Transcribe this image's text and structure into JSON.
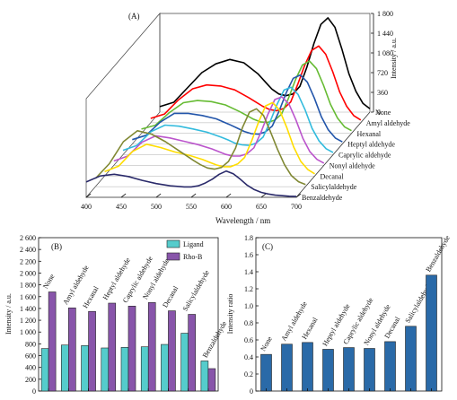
{
  "chart_data": [
    {
      "panel": "(A)",
      "type": "line",
      "view": "3d-waterfall",
      "xlabel": "Wavelength / nm",
      "zlabel": "Intensity / a.u.",
      "xlim": [
        400,
        700
      ],
      "x_ticks": [
        "400",
        "450",
        "500",
        "550",
        "600",
        "650",
        "700"
      ],
      "zlim": [
        0,
        1800
      ],
      "z_ticks": [
        "0",
        "360",
        "720",
        "1 080",
        "1 440",
        "1 800"
      ],
      "series": [
        {
          "name": "None",
          "color": "#000000",
          "x": [
            400,
            420,
            440,
            460,
            480,
            500,
            520,
            540,
            550,
            560,
            570,
            580,
            590,
            600,
            610,
            620,
            630,
            640,
            650,
            660,
            670,
            680,
            690,
            700
          ],
          "values": [
            100,
            180,
            450,
            720,
            880,
            960,
            900,
            700,
            560,
            420,
            330,
            300,
            330,
            470,
            820,
            1250,
            1600,
            1720,
            1550,
            1150,
            700,
            380,
            160,
            60
          ]
        },
        {
          "name": "Amyl aldehyde",
          "color": "#ff0000",
          "x": [
            400,
            420,
            440,
            460,
            480,
            500,
            520,
            540,
            550,
            560,
            570,
            580,
            590,
            600,
            610,
            620,
            630,
            640,
            650,
            660,
            670,
            680,
            690,
            700
          ],
          "values": [
            80,
            160,
            420,
            620,
            690,
            670,
            600,
            460,
            380,
            300,
            240,
            220,
            260,
            380,
            700,
            1050,
            1320,
            1400,
            1250,
            930,
            560,
            300,
            130,
            50
          ]
        },
        {
          "name": "Hexanal",
          "color": "#66bb33",
          "x": [
            400,
            420,
            440,
            460,
            480,
            500,
            520,
            540,
            550,
            560,
            570,
            580,
            590,
            600,
            610,
            620,
            630,
            640,
            650,
            660,
            670,
            680,
            690,
            700
          ],
          "values": [
            80,
            150,
            380,
            560,
            600,
            580,
            520,
            400,
            330,
            260,
            210,
            200,
            240,
            350,
            640,
            980,
            1250,
            1320,
            1180,
            880,
            530,
            280,
            120,
            50
          ]
        },
        {
          "name": "Heptyl aldehyde",
          "color": "#2255aa",
          "x": [
            400,
            420,
            440,
            460,
            480,
            500,
            520,
            540,
            550,
            560,
            570,
            580,
            590,
            600,
            610,
            620,
            630,
            640,
            650,
            660,
            670,
            680,
            690,
            700
          ],
          "values": [
            80,
            160,
            400,
            560,
            560,
            520,
            460,
            350,
            290,
            230,
            190,
            180,
            220,
            330,
            610,
            940,
            1200,
            1260,
            1130,
            840,
            500,
            260,
            110,
            40
          ]
        },
        {
          "name": "Caprylic aldehyde",
          "color": "#33bbdd",
          "x": [
            400,
            420,
            440,
            460,
            480,
            500,
            520,
            540,
            550,
            560,
            570,
            580,
            590,
            600,
            610,
            620,
            630,
            640,
            650,
            660,
            670,
            680,
            690,
            700
          ],
          "values": [
            80,
            170,
            420,
            540,
            520,
            470,
            410,
            320,
            270,
            210,
            180,
            170,
            210,
            320,
            600,
            920,
            1180,
            1230,
            1100,
            820,
            480,
            250,
            110,
            40
          ]
        },
        {
          "name": "Nonyl aldehyde",
          "color": "#bb55cc",
          "x": [
            400,
            420,
            440,
            460,
            480,
            500,
            520,
            540,
            550,
            560,
            570,
            580,
            590,
            600,
            610,
            620,
            630,
            640,
            650,
            660,
            670,
            680,
            690,
            700
          ],
          "values": [
            80,
            170,
            420,
            540,
            500,
            440,
            380,
            300,
            250,
            200,
            170,
            170,
            210,
            320,
            600,
            930,
            1200,
            1250,
            1120,
            830,
            490,
            250,
            110,
            40
          ]
        },
        {
          "name": "Decanal",
          "color": "#ffdd00",
          "x": [
            400,
            420,
            440,
            460,
            480,
            500,
            520,
            540,
            550,
            560,
            570,
            580,
            590,
            600,
            610,
            620,
            630,
            640,
            650,
            660,
            670,
            680,
            690,
            700
          ],
          "values": [
            80,
            180,
            450,
            580,
            520,
            440,
            380,
            300,
            250,
            200,
            170,
            170,
            220,
            340,
            640,
            990,
            1280,
            1340,
            1200,
            890,
            530,
            270,
            120,
            40
          ]
        },
        {
          "name": "Salicylaldehyde",
          "color": "#808833",
          "x": [
            400,
            420,
            440,
            460,
            480,
            500,
            520,
            540,
            550,
            560,
            570,
            580,
            590,
            600,
            610,
            620,
            630,
            640,
            650,
            660,
            670,
            680,
            690,
            700
          ],
          "values": [
            150,
            420,
            820,
            1020,
            960,
            820,
            650,
            480,
            400,
            340,
            320,
            350,
            460,
            700,
            1080,
            1360,
            1420,
            1300,
            1000,
            680,
            400,
            200,
            90,
            40
          ]
        },
        {
          "name": "Benzaldehyde",
          "color": "#2a2a6a",
          "x": [
            400,
            420,
            440,
            460,
            480,
            500,
            520,
            540,
            550,
            560,
            570,
            580,
            590,
            600,
            610,
            620,
            630,
            640,
            650,
            660,
            670,
            680,
            690,
            700
          ],
          "values": [
            280,
            390,
            420,
            380,
            310,
            250,
            210,
            190,
            190,
            210,
            260,
            330,
            420,
            480,
            430,
            330,
            220,
            140,
            90,
            60,
            40,
            30,
            20,
            15
          ]
        }
      ]
    },
    {
      "panel": "(B)",
      "type": "bar",
      "ylabel": "Intensity / a.u.",
      "ylim": [
        0,
        2600
      ],
      "y_ticks": [
        "0",
        "200",
        "400",
        "600",
        "800",
        "1 000",
        "1 200",
        "1 400",
        "1 600",
        "1 800",
        "2 000",
        "2 200",
        "2 400",
        "2 600"
      ],
      "legend_position": "top-right",
      "categories": [
        "None",
        "Amyl aldehyde",
        "Hexanal",
        "Heptyl aldehyde",
        "Caprylic aldehyde",
        "Nonyl aldehyde",
        "Decanal",
        "Salicylaldehyde",
        "Benzaldehyde"
      ],
      "series": [
        {
          "name": "Ligand",
          "color": "#55cccc",
          "values": [
            720,
            780,
            770,
            730,
            740,
            750,
            790,
            980,
            510
          ]
        },
        {
          "name": "Rho-B",
          "color": "#8855aa",
          "values": [
            1680,
            1410,
            1350,
            1490,
            1440,
            1500,
            1360,
            1300,
            380
          ]
        }
      ]
    },
    {
      "panel": "(C)",
      "type": "bar",
      "ylabel": "Intensity ratio",
      "ylim": [
        0,
        1.8
      ],
      "y_ticks": [
        "0",
        "0.2",
        "0.4",
        "0.6",
        "0.8",
        "1.0",
        "1.2",
        "1.4",
        "1.6",
        "1.8"
      ],
      "categories": [
        "None",
        "Amyl aldehyde",
        "Hexanal",
        "Heptyl aldehyde",
        "Caprylic aldehyde",
        "Nonyl aldehyde",
        "Decanal",
        "Salicylaldehyde",
        "Benzaldehyde"
      ],
      "series": [
        {
          "name": "",
          "color": "#2a6aa8",
          "values": [
            0.43,
            0.55,
            0.57,
            0.49,
            0.51,
            0.5,
            0.58,
            0.76,
            1.36
          ]
        }
      ]
    }
  ]
}
